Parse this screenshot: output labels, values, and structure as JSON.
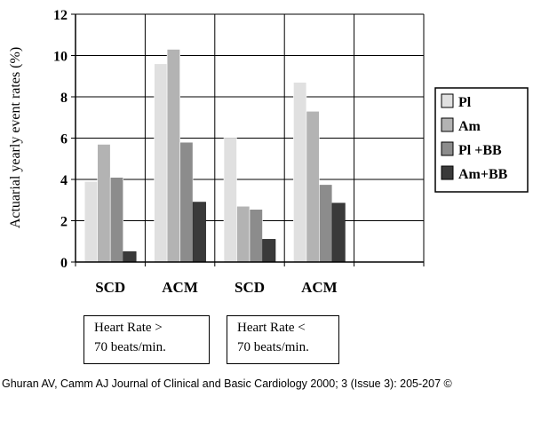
{
  "chart_data": {
    "type": "bar",
    "ylabel": "Actuarial yearly event rates (%)",
    "ylim": [
      0,
      12
    ],
    "yticks": [
      0,
      2,
      4,
      6,
      8,
      10,
      12
    ],
    "categories": [
      "SCD",
      "ACM",
      "SCD",
      "ACM"
    ],
    "series": [
      {
        "name": "Pl",
        "values": [
          3.9,
          9.6,
          6.0,
          8.7
        ]
      },
      {
        "name": "Am",
        "values": [
          5.7,
          10.3,
          2.7,
          7.3
        ]
      },
      {
        "name": "Pl +BB",
        "values": [
          4.1,
          5.8,
          2.55,
          3.75
        ]
      },
      {
        "name": "Am+BB",
        "values": [
          0.5,
          2.9,
          1.1,
          2.85
        ]
      }
    ],
    "legend_position": "right",
    "grid": true,
    "colors": [
      "#e0e0e0",
      "#b3b3b3",
      "#8c8c8c",
      "#3a3a3a"
    ],
    "groups": [
      {
        "line1": "Heart Rate >",
        "line2": "70 beats/min."
      },
      {
        "line1": "Heart Rate <",
        "line2": "70 beats/min."
      }
    ]
  },
  "credit": "Ghuran AV, Camm AJ Journal of Clinical and Basic Cardiology 2000; 3 (Issue 3): 205-207 ©"
}
